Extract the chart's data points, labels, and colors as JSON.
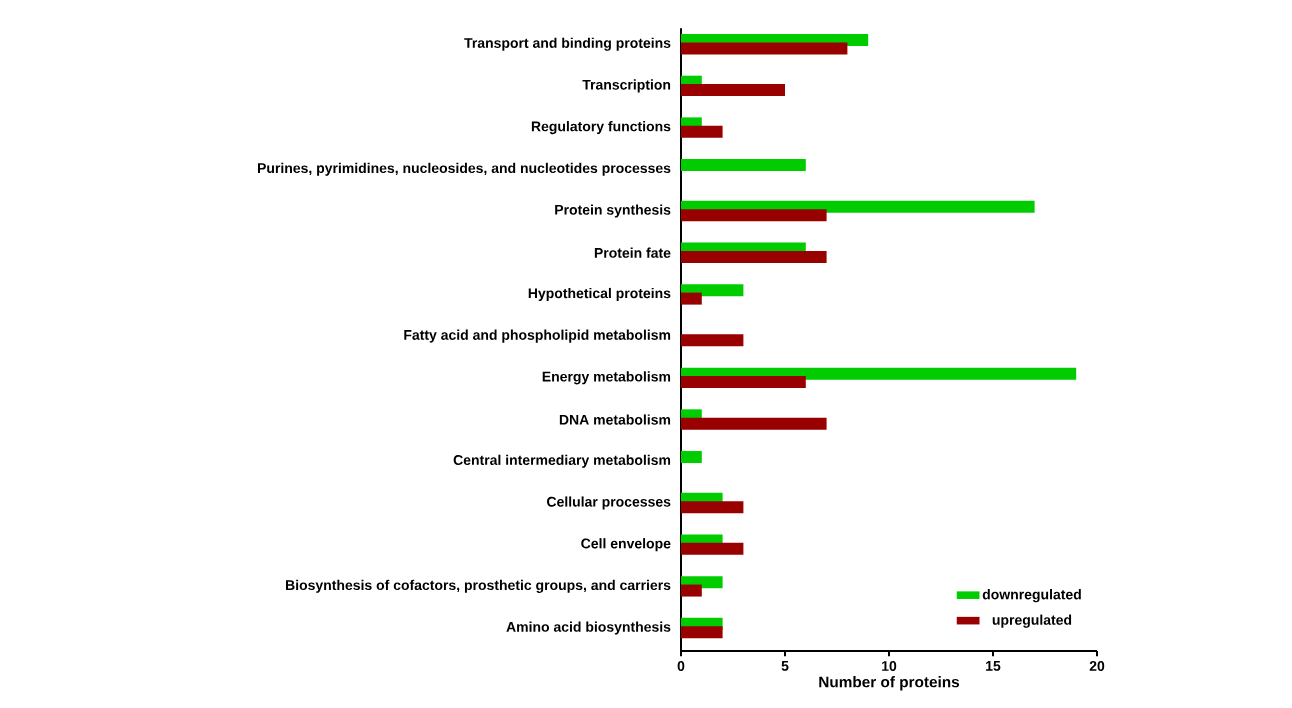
{
  "chart_data": {
    "type": "bar",
    "orientation": "horizontal",
    "xlabel": "Number of proteins",
    "categories": [
      "Transport and binding proteins",
      "Transcription",
      "Regulatory functions",
      "Purines, pyrimidines, nucleosides, and nucleotides processes",
      "Protein synthesis",
      "Protein fate",
      "Hypothetical proteins",
      "Fatty acid and phospholipid metabolism",
      "Energy metabolism",
      "DNA metabolism",
      "Central intermediary metabolism",
      "Cellular processes",
      "Cell envelope",
      "Biosynthesis of cofactors, prosthetic groups, and carriers",
      "Amino acid biosynthesis"
    ],
    "series": [
      {
        "name": "downregulated",
        "color": "#00cc00",
        "values": [
          9,
          1,
          1,
          6,
          17,
          6,
          3,
          0,
          19,
          1,
          1,
          2,
          2,
          2,
          2
        ]
      },
      {
        "name": "upregulated",
        "color": "#990000",
        "values": [
          8,
          5,
          2,
          0,
          7,
          7,
          1,
          3,
          6,
          7,
          0,
          3,
          3,
          1,
          2
        ]
      }
    ],
    "xlim": [
      0,
      20
    ],
    "xticks": [
      0,
      5,
      10,
      15,
      20
    ],
    "grid": false,
    "legend": "bottom right"
  }
}
